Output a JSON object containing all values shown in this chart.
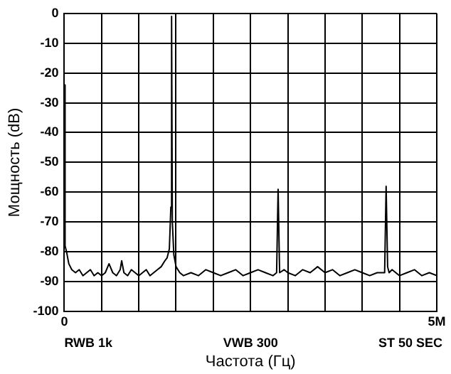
{
  "chart_data": {
    "type": "line",
    "xlabel": "Частота (Гц)",
    "ylabel": "Мощность (dB)",
    "annotations": [
      "RWB 1k",
      "VWB 300",
      "ST 50 SEC"
    ],
    "xlim": [
      0,
      5000000
    ],
    "xticks": [
      0,
      {
        "value": 500000,
        "label": null
      },
      {
        "value": 1000000,
        "label": null
      },
      {
        "value": 1500000,
        "label": null
      },
      {
        "value": 2000000,
        "label": null
      },
      {
        "value": 2500000,
        "label": null
      },
      {
        "value": 3000000,
        "label": null
      },
      {
        "value": 3500000,
        "label": null
      },
      {
        "value": 4000000,
        "label": null
      },
      {
        "value": 4500000,
        "label": null
      },
      {
        "value": 5000000,
        "label": "5M"
      }
    ],
    "ylim": [
      -100,
      0
    ],
    "yticks": [
      -100,
      -90,
      -80,
      -70,
      -60,
      -50,
      -40,
      -30,
      -20,
      -10,
      0
    ],
    "grid": true,
    "marker": "none",
    "line_style": "solid",
    "series": [
      {
        "color": "#000000",
        "x": [
          0,
          10000,
          30000,
          60000,
          100000,
          150000,
          200000,
          250000,
          300000,
          350000,
          400000,
          450000,
          500000,
          550000,
          600000,
          650000,
          700000,
          750000,
          770000,
          800000,
          850000,
          900000,
          950000,
          1000000,
          1050000,
          1100000,
          1150000,
          1200000,
          1250000,
          1300000,
          1350000,
          1380000,
          1410000,
          1430000,
          1440000,
          1450000,
          1470000,
          1500000,
          1550000,
          1600000,
          1700000,
          1800000,
          1900000,
          2000000,
          2100000,
          2200000,
          2300000,
          2400000,
          2500000,
          2600000,
          2700000,
          2800000,
          2850000,
          2870000,
          2890000,
          2950000,
          3000000,
          3100000,
          3200000,
          3300000,
          3400000,
          3500000,
          3600000,
          3700000,
          3800000,
          3900000,
          4000000,
          4100000,
          4200000,
          4300000,
          4320000,
          4340000,
          4360000,
          4400000,
          4500000,
          4600000,
          4700000,
          4800000,
          4900000,
          5000000
        ],
        "values": [
          -24,
          -78,
          -80,
          -84,
          -86,
          -87,
          -86,
          -88,
          -87,
          -86,
          -88,
          -87,
          -88,
          -87,
          -84,
          -87,
          -88,
          -86,
          -83,
          -87,
          -88,
          -86,
          -87,
          -88,
          -87,
          -86,
          -88,
          -87,
          -86,
          -85,
          -83,
          -82,
          -79,
          -65,
          -1,
          -70,
          -81,
          -85,
          -87,
          -88,
          -87,
          -88,
          -86,
          -87,
          -88,
          -87,
          -86,
          -88,
          -87,
          -86,
          -87,
          -88,
          -87,
          -59,
          -87,
          -86,
          -87,
          -88,
          -86,
          -87,
          -85,
          -87,
          -86,
          -88,
          -87,
          -86,
          -87,
          -88,
          -87,
          -87,
          -58,
          -85,
          -87,
          -86,
          -88,
          -87,
          -86,
          -88,
          -87,
          -88
        ]
      }
    ]
  }
}
